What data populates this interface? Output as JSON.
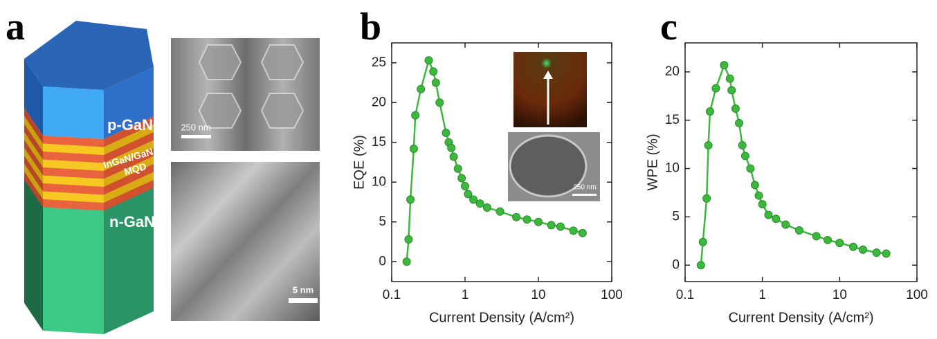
{
  "figure": {
    "panel_labels": [
      "a",
      "b",
      "c"
    ],
    "diagram": {
      "top_layer": "p-GaN",
      "middle_layer": [
        "InGaN/GaN",
        "MQD"
      ],
      "bottom_layer": "n-GaN"
    },
    "images": {
      "sem_scale": "250 nm",
      "tem_scale": "5 nm",
      "inset_scale": "250 nm"
    }
  },
  "chart_data": [
    {
      "type": "line",
      "xscale": "log",
      "x_label": "Current Density (A/cm²)",
      "y_label": "EQE (%)",
      "x": [
        0.16,
        0.17,
        0.18,
        0.2,
        0.21,
        0.25,
        0.32,
        0.37,
        0.4,
        0.45,
        0.55,
        0.6,
        0.65,
        0.7,
        0.8,
        0.9,
        1.0,
        1.1,
        1.3,
        1.6,
        2,
        3,
        5,
        7,
        10,
        15,
        20,
        30,
        40
      ],
      "values": [
        0,
        2.8,
        7.8,
        14.2,
        18.4,
        21.7,
        25.3,
        23.9,
        22.5,
        20,
        16.2,
        15,
        14.3,
        13.2,
        11.7,
        10.5,
        9.5,
        8.5,
        7.8,
        7.3,
        6.8,
        6.3,
        5.6,
        5.3,
        5,
        4.6,
        4.4,
        3.9,
        3.6
      ],
      "color": "#3cb83c",
      "xlim": [
        0.1,
        100
      ],
      "xticks": [
        0.1,
        1,
        10,
        100
      ],
      "ylim": [
        -2.5,
        27.5
      ],
      "yticks": [
        0,
        5,
        10,
        15,
        20,
        25
      ]
    },
    {
      "type": "line",
      "xscale": "log",
      "x_label": "Current Density (A/cm²)",
      "y_label": "WPE (%)",
      "x": [
        0.16,
        0.17,
        0.19,
        0.2,
        0.21,
        0.25,
        0.32,
        0.38,
        0.4,
        0.45,
        0.5,
        0.55,
        0.6,
        0.7,
        0.8,
        0.9,
        1.0,
        1.2,
        1.5,
        2,
        3,
        5,
        7,
        10,
        15,
        20,
        30,
        40
      ],
      "values": [
        0,
        2.4,
        6.9,
        12.4,
        15.9,
        18.3,
        20.7,
        19.3,
        18.1,
        16.2,
        14.7,
        12.4,
        11.3,
        10,
        8.3,
        7.2,
        6.3,
        5.2,
        4.8,
        4.2,
        3.6,
        3,
        2.6,
        2.3,
        1.9,
        1.6,
        1.3,
        1.2
      ],
      "color": "#3cb83c",
      "xlim": [
        0.1,
        100
      ],
      "xticks": [
        0.1,
        1,
        10,
        100
      ],
      "ylim": [
        -1.7,
        23
      ],
      "yticks": [
        0,
        5,
        10,
        15,
        20
      ]
    }
  ]
}
